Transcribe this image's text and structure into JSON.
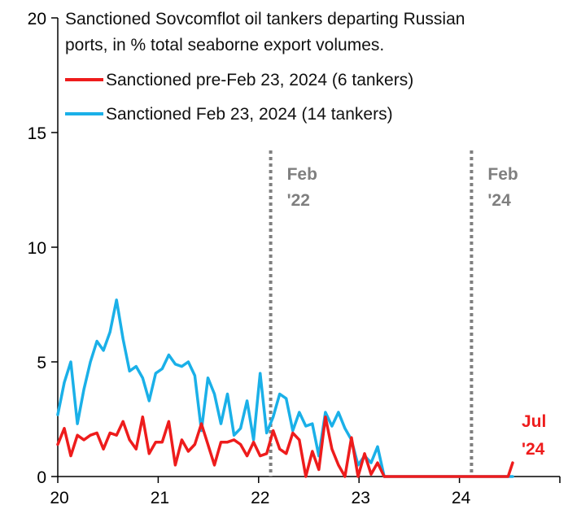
{
  "chart_data": {
    "type": "line",
    "title_lines": [
      "Sanctioned Sovcomflot oil tankers departing Russian",
      "ports, in % total seaborne export volumes."
    ],
    "xlim": [
      20,
      25
    ],
    "ylim": [
      0,
      20
    ],
    "x_ticks": [
      20,
      21,
      22,
      23,
      24
    ],
    "x_tick_labels": [
      "20",
      "21",
      "22",
      "23",
      "24"
    ],
    "y_ticks": [
      0,
      5,
      10,
      15,
      20
    ],
    "y_tick_labels": [
      "0",
      "5",
      "10",
      "15",
      "20"
    ],
    "grid": false,
    "legend_position": "top-left",
    "series": [
      {
        "name": "Sanctioned pre-Feb 23, 2024 (6 tankers)",
        "color": "#ee1c1c",
        "x": [
          20.0,
          20.065,
          20.13,
          20.195,
          20.26,
          20.325,
          20.39,
          20.455,
          20.52,
          20.585,
          20.65,
          20.715,
          20.78,
          20.845,
          20.91,
          20.975,
          21.04,
          21.105,
          21.17,
          21.235,
          21.3,
          21.365,
          21.43,
          21.495,
          21.56,
          21.625,
          21.69,
          21.755,
          21.82,
          21.885,
          21.95,
          22.015,
          22.08,
          22.145,
          22.21,
          22.275,
          22.34,
          22.405,
          22.47,
          22.535,
          22.6,
          22.665,
          22.73,
          22.795,
          22.86,
          22.925,
          22.99,
          23.055,
          23.12,
          23.185,
          23.25,
          23.315,
          23.38,
          23.445,
          23.51,
          23.575,
          23.64,
          23.705,
          23.77,
          23.835,
          23.9,
          23.965,
          24.03,
          24.095,
          24.16,
          24.225,
          24.29,
          24.355,
          24.42,
          24.485,
          24.53
        ],
        "values": [
          1.4,
          2.1,
          0.9,
          1.8,
          1.6,
          1.8,
          1.9,
          1.2,
          1.9,
          1.8,
          2.4,
          1.6,
          1.2,
          2.6,
          1.0,
          1.5,
          1.5,
          2.4,
          0.5,
          1.6,
          1.1,
          1.4,
          2.3,
          1.4,
          0.5,
          1.5,
          1.5,
          1.6,
          1.4,
          0.9,
          1.5,
          0.9,
          1.0,
          2.0,
          1.2,
          1.0,
          1.9,
          1.6,
          0.0,
          1.1,
          0.3,
          2.6,
          1.2,
          0.5,
          0.0,
          1.7,
          0.0,
          1.0,
          0.1,
          0.6,
          0.0,
          0.0,
          0.0,
          0.0,
          0.0,
          0.0,
          0.0,
          0.0,
          0.0,
          0.0,
          0.0,
          0.0,
          0.0,
          0.0,
          0.0,
          0.0,
          0.0,
          0.0,
          0.0,
          0.0,
          0.6
        ]
      },
      {
        "name": "Sanctioned Feb 23, 2024 (14 tankers)",
        "color": "#1ab0e8",
        "x": [
          20.0,
          20.065,
          20.13,
          20.195,
          20.26,
          20.325,
          20.39,
          20.455,
          20.52,
          20.585,
          20.65,
          20.715,
          20.78,
          20.845,
          20.91,
          20.975,
          21.04,
          21.105,
          21.17,
          21.235,
          21.3,
          21.365,
          21.43,
          21.495,
          21.56,
          21.625,
          21.69,
          21.755,
          21.82,
          21.885,
          21.95,
          22.015,
          22.08,
          22.145,
          22.21,
          22.275,
          22.34,
          22.405,
          22.47,
          22.535,
          22.6,
          22.665,
          22.73,
          22.795,
          22.86,
          22.925,
          22.99,
          23.055,
          23.12,
          23.185,
          23.25,
          23.315,
          23.38,
          23.445,
          23.51,
          23.575,
          23.64,
          23.705,
          23.77,
          23.835,
          23.9,
          23.965,
          24.03,
          24.095,
          24.16,
          24.225,
          24.29,
          24.355,
          24.42,
          24.485,
          24.53
        ],
        "values": [
          2.7,
          4.1,
          5.0,
          2.3,
          3.8,
          5.0,
          5.9,
          5.5,
          6.3,
          7.7,
          6.0,
          4.6,
          4.8,
          4.3,
          3.3,
          4.5,
          4.7,
          5.3,
          4.9,
          4.8,
          5.0,
          4.4,
          2.0,
          4.3,
          3.6,
          2.3,
          3.6,
          1.8,
          2.1,
          3.3,
          1.6,
          4.5,
          1.9,
          2.6,
          3.6,
          3.4,
          2.0,
          2.8,
          2.2,
          2.3,
          0.9,
          2.8,
          2.2,
          2.8,
          2.1,
          1.6,
          0.5,
          0.9,
          0.6,
          1.3,
          0.0,
          0.0,
          0.0,
          0.0,
          0.0,
          0.0,
          0.0,
          0.0,
          0.0,
          0.0,
          0.0,
          0.0,
          0.0,
          0.0,
          0.0,
          0.0,
          0.0,
          0.0,
          0.0,
          0.0,
          0.0
        ]
      }
    ],
    "vlines": [
      {
        "x": 22.12,
        "label_line1": "Feb",
        "label_line2": "'22",
        "color": "#7f7f7f"
      },
      {
        "x": 24.12,
        "label_line1": "Feb",
        "label_line2": "'24",
        "color": "#7f7f7f"
      }
    ],
    "end_annotation": {
      "line1": "Jul",
      "line2": "'24",
      "color": "#ee1c1c"
    }
  }
}
